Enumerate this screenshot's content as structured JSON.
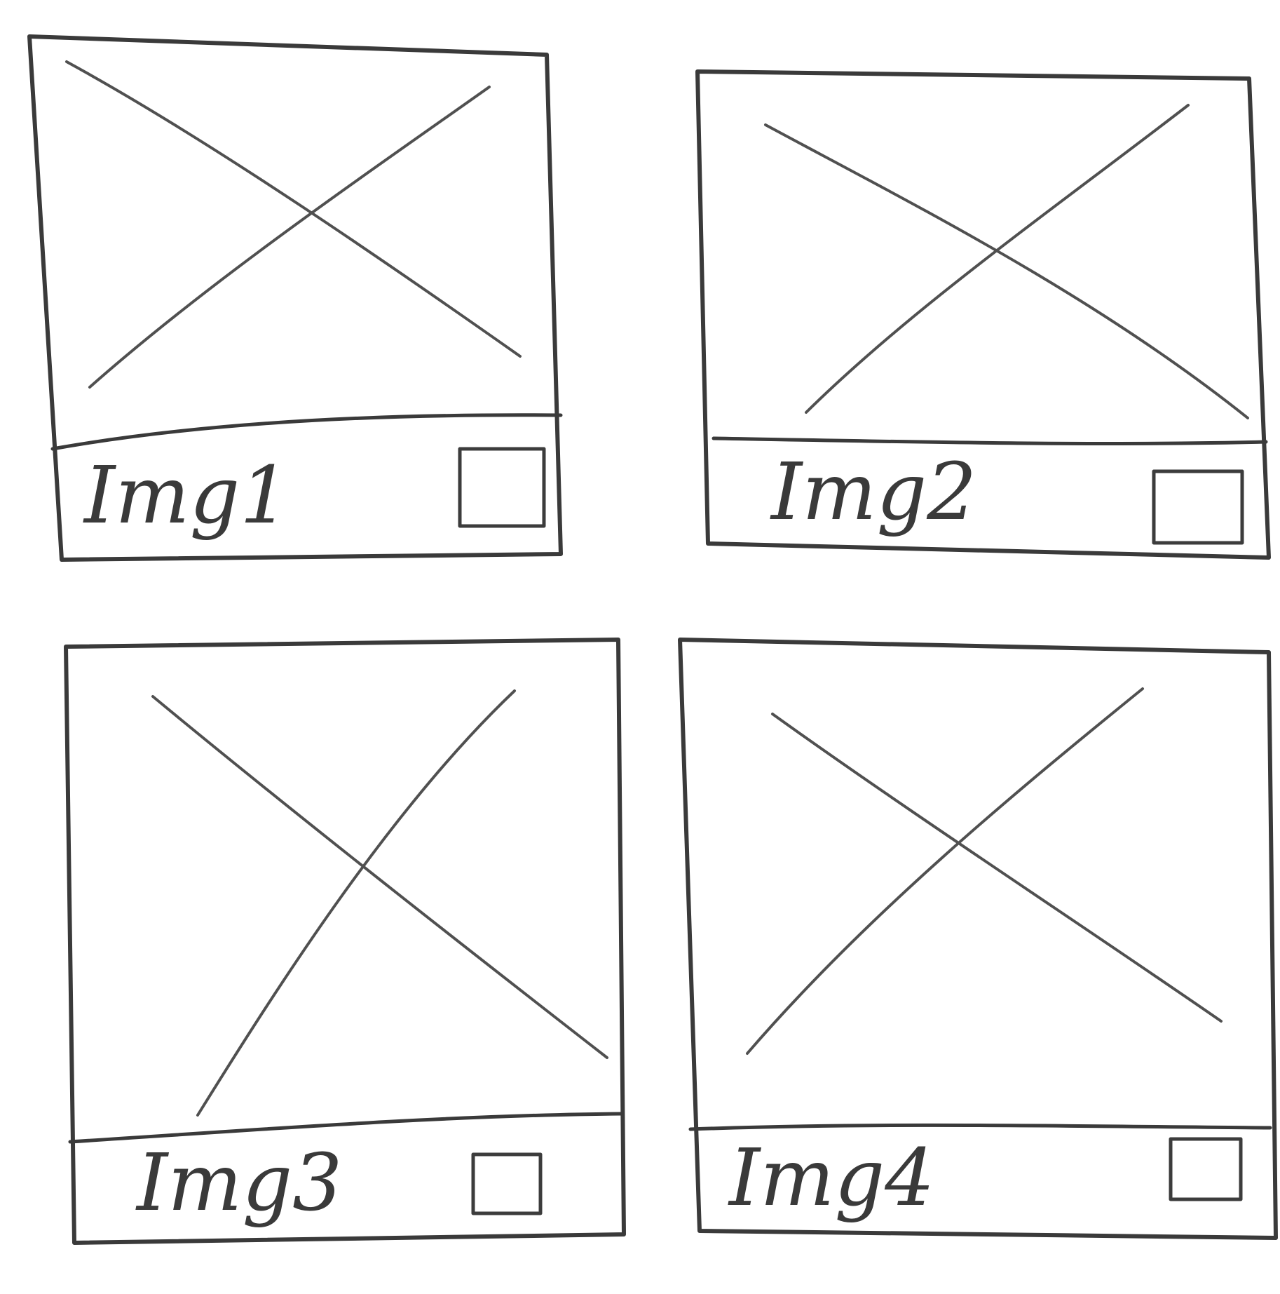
{
  "cards": [
    {
      "label": "Img1"
    },
    {
      "label": "Img2"
    },
    {
      "label": "Img3"
    },
    {
      "label": "Img4"
    }
  ],
  "ink_color": "#3a3a3a",
  "background": "#ffffff"
}
